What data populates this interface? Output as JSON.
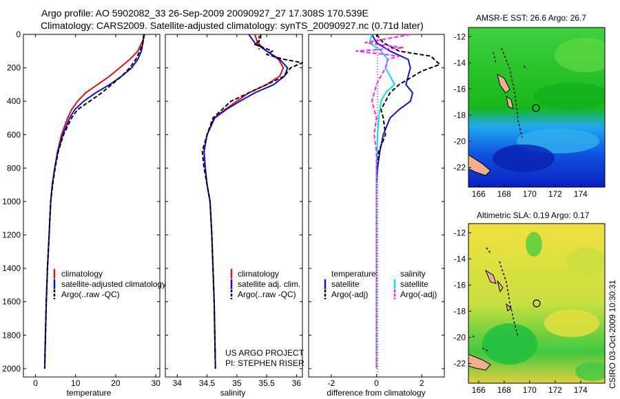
{
  "title": {
    "line1": "Argo profile: AO 5902082_33 26-Sep-2009 20090927_27 17.308S 170.539E",
    "line2": "Climatology: CARS2009. Satellite-adjusted climatology: synTS_20090927.nc (0.71d later)"
  },
  "colors": {
    "climatology": "#e01010",
    "satellite": "#1010d0",
    "argo": "#000000",
    "salinity_sat": "#00e0e0",
    "salinity_argo": "#ff20ff"
  },
  "chart_data": [
    {
      "type": "line",
      "name": "temperature",
      "xlabel": "temperature",
      "ylabel": "",
      "xlim": [
        -3,
        31
      ],
      "ylim": [
        2050,
        0
      ],
      "xticks": [
        "0",
        "10",
        "20",
        "30"
      ],
      "xtick_values": [
        0,
        10,
        20,
        30
      ],
      "yticks": [
        "0",
        "200",
        "400",
        "600",
        "800",
        "1000",
        "1200",
        "1400",
        "1600",
        "1800",
        "2000"
      ],
      "ytick_values": [
        0,
        200,
        400,
        600,
        800,
        1000,
        1200,
        1400,
        1600,
        1800,
        2000
      ],
      "legend": [
        "climatology",
        "satellite-adjusted climatology",
        "Argo(..raw -QC)"
      ],
      "series": [
        {
          "name": "climatology",
          "color": "#e01010",
          "dash": "",
          "x": [
            27.2,
            27.0,
            26.5,
            25.5,
            23.5,
            21.0,
            18.5,
            15.5,
            12.5,
            10.5,
            9.0,
            8.0,
            6.5,
            5.5,
            4.8,
            4.2,
            3.8,
            3.4,
            3.0,
            2.7,
            2.5,
            2.4,
            2.3
          ],
          "y": [
            0,
            20,
            50,
            100,
            150,
            200,
            250,
            300,
            350,
            400,
            450,
            500,
            600,
            700,
            800,
            900,
            1000,
            1200,
            1400,
            1600,
            1800,
            1900,
            2000
          ]
        },
        {
          "name": "satellite-adjusted climatology",
          "color": "#1010d0",
          "dash": "",
          "x": [
            27.0,
            26.9,
            26.8,
            26.4,
            25.5,
            24.0,
            21.5,
            18.5,
            15.0,
            12.0,
            9.8,
            8.5,
            6.8,
            5.6,
            4.8,
            4.2,
            3.8,
            3.4,
            3.0,
            2.7,
            2.5,
            2.4,
            2.3
          ],
          "y": [
            0,
            20,
            50,
            100,
            150,
            200,
            250,
            300,
            350,
            400,
            450,
            500,
            600,
            700,
            800,
            900,
            1000,
            1200,
            1400,
            1600,
            1800,
            1900,
            2000
          ]
        },
        {
          "name": "Argo(..raw -QC)",
          "color": "#000000",
          "dash": "6,3",
          "x": [
            27.0,
            27.0,
            26.8,
            26.0,
            25.0,
            23.5,
            21.5,
            19.0,
            16.5,
            13.5,
            10.5,
            9.0,
            7.0,
            5.7,
            4.9,
            4.3,
            3.8,
            3.4,
            3.0,
            2.7,
            2.5,
            2.4,
            2.3
          ],
          "y": [
            0,
            20,
            50,
            100,
            150,
            200,
            250,
            300,
            350,
            400,
            450,
            500,
            600,
            700,
            800,
            900,
            1000,
            1200,
            1400,
            1600,
            1800,
            1900,
            2000
          ]
        }
      ]
    },
    {
      "type": "line",
      "name": "salinity",
      "xlabel": "salinity",
      "ylabel": "",
      "xlim": [
        33.8,
        36.1
      ],
      "ylim": [
        2050,
        0
      ],
      "xticks": [
        "34",
        "34.5",
        "35",
        "35.5",
        "36"
      ],
      "xtick_values": [
        34,
        34.5,
        35,
        35.5,
        36
      ],
      "legend": [
        "climatology",
        "satellite adj. clim.",
        "Argo(..raw -QC)"
      ],
      "annotation": [
        "US ARGO PROJECT",
        "PI: STEPHEN RISER"
      ],
      "series": [
        {
          "name": "climatology",
          "color": "#e01010",
          "dash": "",
          "x": [
            35.3,
            35.35,
            35.5,
            35.7,
            35.78,
            35.72,
            35.5,
            35.2,
            35.0,
            34.8,
            34.62,
            34.5,
            34.45,
            34.47,
            34.5,
            34.55,
            34.58,
            34.6,
            34.62,
            34.64
          ],
          "y": [
            0,
            50,
            100,
            150,
            200,
            250,
            300,
            350,
            400,
            450,
            500,
            600,
            700,
            800,
            900,
            1000,
            1200,
            1400,
            1600,
            2000
          ]
        },
        {
          "name": "satellite adj. clim.",
          "color": "#1010d0",
          "dash": "",
          "x": [
            35.2,
            35.3,
            35.5,
            35.72,
            35.85,
            35.8,
            35.62,
            35.3,
            35.05,
            34.82,
            34.63,
            34.5,
            34.45,
            34.47,
            34.5,
            34.55,
            34.58,
            34.6,
            34.62,
            34.64
          ],
          "y": [
            0,
            50,
            100,
            150,
            200,
            250,
            300,
            350,
            400,
            450,
            500,
            600,
            700,
            800,
            900,
            1000,
            1200,
            1400,
            1600,
            2000
          ]
        },
        {
          "name": "Argo(..raw -QC)",
          "color": "#000000",
          "dash": "6,3",
          "x": [
            35.4,
            35.4,
            35.3,
            35.6,
            35.5,
            35.8,
            36.1,
            35.9,
            35.8,
            35.5,
            35.2,
            34.9,
            34.75,
            34.6,
            34.5,
            34.42,
            34.45,
            34.5,
            34.55,
            34.58,
            34.6,
            34.62,
            34.64
          ],
          "y": [
            0,
            30,
            60,
            100,
            120,
            150,
            170,
            200,
            250,
            300,
            350,
            400,
            450,
            500,
            600,
            700,
            800,
            900,
            1000,
            1200,
            1400,
            1600,
            2000
          ]
        }
      ]
    },
    {
      "type": "line",
      "name": "difference",
      "xlabel": "difference from climatology",
      "ylabel": "",
      "xlim": [
        -3,
        3
      ],
      "ylim": [
        2050,
        0
      ],
      "xticks": [
        "-2",
        "0",
        "2"
      ],
      "xtick_values": [
        -2,
        0,
        2
      ],
      "legend_temperature": [
        "temperature",
        "satellite",
        "Argo(-adj)"
      ],
      "legend_salinity": [
        "salinity",
        "satellite",
        "Argo(-adj)"
      ],
      "series": [
        {
          "name": "temperature satellite",
          "color": "#1010d0",
          "dash": "",
          "x": [
            -0.2,
            0.0,
            0.6,
            1.4,
            1.5,
            1.4,
            1.3,
            1.6,
            1.5,
            1.0,
            0.6,
            0.3,
            0.15,
            0.05,
            0.0,
            0.0,
            0.0,
            0.0,
            0.0,
            0.0,
            0.0
          ],
          "y": [
            0,
            50,
            100,
            150,
            200,
            250,
            300,
            350,
            400,
            450,
            500,
            600,
            700,
            800,
            900,
            1000,
            1200,
            1400,
            1600,
            1800,
            2000
          ]
        },
        {
          "name": "temperature Argo(-adj)",
          "color": "#000000",
          "dash": "6,3",
          "x": [
            0.0,
            0.3,
            1.0,
            2.4,
            2.8,
            2.0,
            1.5,
            1.0,
            0.6,
            0.4,
            0.2,
            0.3,
            0.4,
            0.1,
            0.0,
            0.0,
            0.0,
            0.0,
            0.0,
            0.0,
            0.0
          ],
          "y": [
            0,
            50,
            100,
            130,
            180,
            220,
            260,
            300,
            350,
            400,
            450,
            500,
            600,
            700,
            800,
            1000,
            1200,
            1400,
            1600,
            1800,
            2000
          ]
        },
        {
          "name": "salinity satellite",
          "color": "#00e0e0",
          "dash": "",
          "x": [
            -0.2,
            -0.3,
            0.2,
            0.5,
            0.4,
            0.6,
            0.8,
            0.4,
            0.2,
            0.1,
            0.05,
            0.0,
            0.0,
            0.0,
            0.0,
            0.0
          ],
          "y": [
            0,
            50,
            100,
            150,
            200,
            250,
            300,
            350,
            400,
            500,
            600,
            800,
            1000,
            1400,
            1800,
            2000
          ]
        },
        {
          "name": "salinity Argo(-adj)",
          "color": "#ff20ff",
          "dash": "6,3",
          "x": [
            1.5,
            -0.5,
            1.2,
            -0.9,
            1.0,
            0.5,
            0.4,
            0.0,
            -0.2,
            0.0,
            -0.1,
            0.0,
            0.0,
            0.0,
            0.0,
            0.0
          ],
          "y": [
            0,
            50,
            80,
            100,
            130,
            150,
            200,
            300,
            400,
            500,
            600,
            700,
            800,
            1000,
            1600,
            2000
          ]
        }
      ]
    }
  ],
  "maps": [
    {
      "title": "AMSR-E SST: 26.6 Argo: 26.7",
      "xticks": [
        "166",
        "168",
        "170",
        "172",
        "174"
      ],
      "yticks": [
        "-12",
        "-14",
        "-16",
        "-18",
        "-20",
        "-22"
      ]
    },
    {
      "title": "Altimetric SLA: 0.19 Argo: 0.17",
      "xticks": [
        "166",
        "168",
        "170",
        "172",
        "174"
      ],
      "yticks": [
        "-12",
        "-14",
        "-16",
        "-18",
        "-20",
        "-22"
      ]
    }
  ],
  "stamp": "CSIRO 03-Oct-2009 10:30:31"
}
